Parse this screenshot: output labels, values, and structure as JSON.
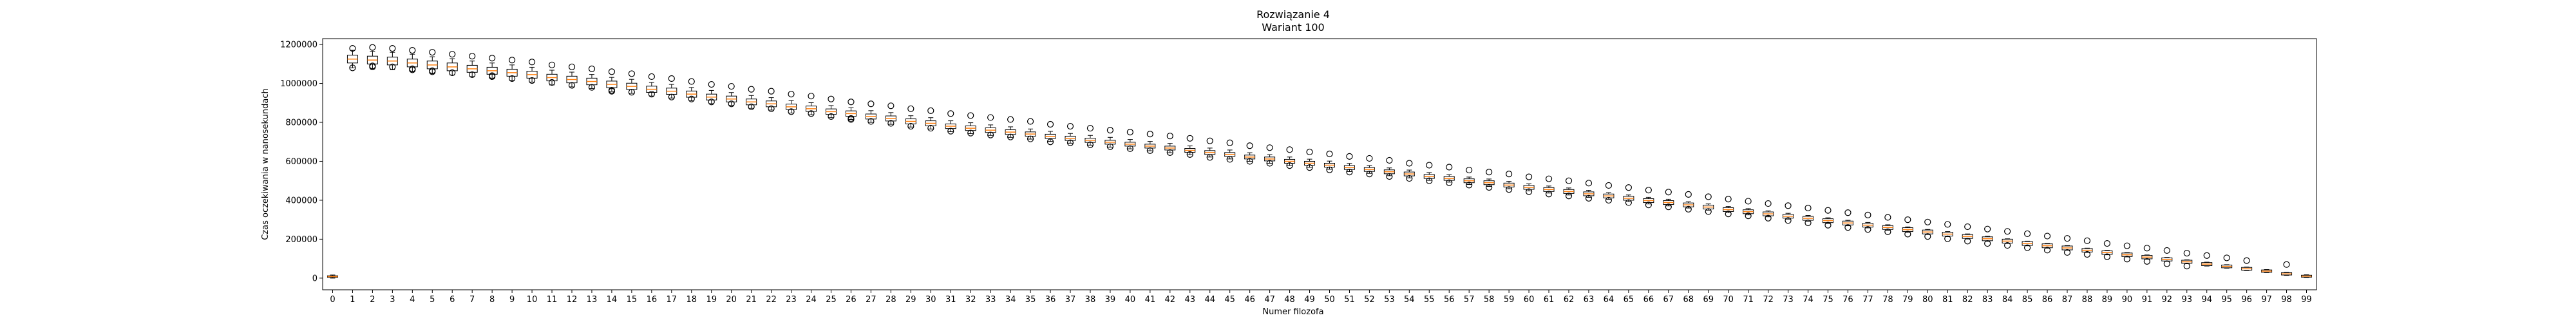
{
  "chart_data": {
    "type": "boxplot",
    "title": "Rozwiązanie 4",
    "subtitle": "Wariant 100",
    "xlabel": "Numer filozofa",
    "ylabel": "Czas oczekiwania w nanosekundach",
    "ylim": [
      -60000,
      1230000
    ],
    "y_ticks": [
      0,
      200000,
      400000,
      600000,
      800000,
      1000000,
      1200000
    ],
    "grid": false,
    "legend": "none",
    "colors": {
      "box": "#000000",
      "median": "#ff7f0e",
      "flier": "#000000",
      "axes": "#000000"
    },
    "categories": [
      "0",
      "1",
      "2",
      "3",
      "4",
      "5",
      "6",
      "7",
      "8",
      "9",
      "10",
      "11",
      "12",
      "13",
      "14",
      "15",
      "16",
      "17",
      "18",
      "19",
      "20",
      "21",
      "22",
      "23",
      "24",
      "25",
      "26",
      "27",
      "28",
      "29",
      "30",
      "31",
      "32",
      "33",
      "34",
      "35",
      "36",
      "37",
      "38",
      "39",
      "40",
      "41",
      "42",
      "43",
      "44",
      "45",
      "46",
      "47",
      "48",
      "49",
      "50",
      "51",
      "52",
      "53",
      "54",
      "55",
      "56",
      "57",
      "58",
      "59",
      "60",
      "61",
      "62",
      "63",
      "64",
      "65",
      "66",
      "67",
      "68",
      "69",
      "70",
      "71",
      "72",
      "73",
      "74",
      "75",
      "76",
      "77",
      "78",
      "79",
      "80",
      "81",
      "82",
      "83",
      "84",
      "85",
      "86",
      "87",
      "88",
      "89",
      "90",
      "91",
      "92",
      "93",
      "94",
      "95",
      "96",
      "97",
      "98",
      "99"
    ],
    "medians": [
      8000,
      1125000,
      1120000,
      1115000,
      1105000,
      1095000,
      1085000,
      1075000,
      1065000,
      1055000,
      1045000,
      1030000,
      1020000,
      1010000,
      995000,
      985000,
      970000,
      960000,
      945000,
      930000,
      920000,
      905000,
      895000,
      880000,
      870000,
      855000,
      845000,
      830000,
      820000,
      805000,
      795000,
      780000,
      770000,
      760000,
      750000,
      740000,
      728000,
      718000,
      708000,
      698000,
      688000,
      678000,
      668000,
      656000,
      645000,
      635000,
      622000,
      612000,
      600000,
      590000,
      580000,
      568000,
      558000,
      546000,
      535000,
      522000,
      512000,
      500000,
      490000,
      478000,
      466000,
      455000,
      445000,
      433000,
      422000,
      410000,
      398000,
      388000,
      376000,
      365000,
      352000,
      341000,
      330000,
      318000,
      307000,
      295000,
      283000,
      272000,
      260000,
      249000,
      237000,
      226000,
      214000,
      202000,
      190000,
      178000,
      166000,
      155000,
      143000,
      131000,
      120000,
      108000,
      96000,
      84000,
      72000,
      60000,
      48000,
      36000,
      22000,
      10000
    ],
    "box_half_range": [
      4000,
      20000,
      20000,
      20000,
      20000,
      20000,
      20000,
      18000,
      18000,
      18000,
      18000,
      17000,
      17000,
      17000,
      17000,
      16000,
      16000,
      16000,
      16000,
      15000,
      15000,
      15000,
      15000,
      14000,
      14000,
      14000,
      14000,
      13000,
      13000,
      13000,
      13000,
      12000,
      12000,
      12000,
      12000,
      11000,
      11000,
      11000,
      11000,
      10000,
      10000,
      10000,
      10000,
      10000,
      10000,
      10000,
      10000,
      10000,
      10000,
      10000,
      10000,
      10000,
      10000,
      10000,
      10000,
      10000,
      10000,
      10000,
      10000,
      10000,
      10000,
      10000,
      10000,
      10000,
      10000,
      10000,
      10000,
      10000,
      10000,
      10000,
      10000,
      10000,
      10000,
      10000,
      10000,
      10000,
      10000,
      10000,
      10000,
      10000,
      10000,
      10000,
      10000,
      10000,
      10000,
      10000,
      10000,
      10000,
      9000,
      9000,
      9000,
      9000,
      8000,
      8000,
      8000,
      7000,
      7000,
      6000,
      6000,
      5000
    ],
    "whisker_half_range": [
      8000,
      45000,
      45000,
      45000,
      45000,
      42000,
      42000,
      40000,
      40000,
      40000,
      38000,
      38000,
      38000,
      36000,
      36000,
      36000,
      35000,
      35000,
      34000,
      34000,
      33000,
      33000,
      32000,
      32000,
      31000,
      31000,
      30000,
      30000,
      30000,
      29000,
      29000,
      28000,
      28000,
      27000,
      27000,
      26000,
      26000,
      25000,
      25000,
      25000,
      24000,
      24000,
      24000,
      23000,
      23000,
      23000,
      22000,
      22000,
      22000,
      21000,
      21000,
      21000,
      20000,
      20000,
      20000,
      20000,
      19000,
      19000,
      19000,
      19000,
      18000,
      18000,
      18000,
      18000,
      17000,
      17000,
      17000,
      17000,
      16000,
      16000,
      16000,
      16000,
      15000,
      15000,
      15000,
      15000,
      14000,
      14000,
      14000,
      14000,
      13000,
      13000,
      13000,
      13000,
      12000,
      12000,
      12000,
      12000,
      11000,
      11000,
      11000,
      11000,
      10000,
      10000,
      10000,
      9000,
      9000,
      8000,
      8000,
      7000
    ],
    "fliers": [
      [],
      [
        1180000,
        1080000
      ],
      [
        1185000,
        1090000,
        1085000
      ],
      [
        1180000,
        1085000
      ],
      [
        1170000,
        1075000,
        1070000
      ],
      [
        1160000,
        1065000,
        1060000
      ],
      [
        1150000,
        1055000
      ],
      [
        1140000,
        1045000
      ],
      [
        1130000,
        1040000,
        1035000
      ],
      [
        1120000,
        1025000
      ],
      [
        1110000,
        1015000
      ],
      [
        1095000,
        1005000
      ],
      [
        1085000,
        990000
      ],
      [
        1075000,
        980000
      ],
      [
        1060000,
        965000,
        960000
      ],
      [
        1050000,
        955000
      ],
      [
        1035000,
        945000
      ],
      [
        1025000,
        930000
      ],
      [
        1010000,
        920000
      ],
      [
        995000,
        905000
      ],
      [
        985000,
        895000
      ],
      [
        970000,
        880000
      ],
      [
        960000,
        870000
      ],
      [
        945000,
        855000
      ],
      [
        935000,
        845000
      ],
      [
        920000,
        830000
      ],
      [
        905000,
        820000,
        815000
      ],
      [
        895000,
        805000
      ],
      [
        885000,
        795000
      ],
      [
        870000,
        780000
      ],
      [
        860000,
        770000
      ],
      [
        845000,
        755000
      ],
      [
        835000,
        745000
      ],
      [
        825000,
        735000
      ],
      [
        815000,
        725000
      ],
      [
        805000,
        715000
      ],
      [
        790000,
        700000
      ],
      [
        780000,
        695000
      ],
      [
        770000,
        685000
      ],
      [
        760000,
        675000
      ],
      [
        750000,
        665000
      ],
      [
        740000,
        655000
      ],
      [
        730000,
        645000
      ],
      [
        718000,
        635000
      ],
      [
        705000,
        620000
      ],
      [
        695000,
        610000
      ],
      [
        680000,
        600000
      ],
      [
        670000,
        590000
      ],
      [
        660000,
        578000
      ],
      [
        648000,
        568000
      ],
      [
        638000,
        556000
      ],
      [
        625000,
        545000
      ],
      [
        615000,
        535000
      ],
      [
        605000,
        522000
      ],
      [
        590000,
        512000
      ],
      [
        580000,
        500000
      ],
      [
        570000,
        490000
      ],
      [
        555000,
        478000
      ],
      [
        545000,
        466000
      ],
      [
        535000,
        455000
      ],
      [
        520000,
        444000
      ],
      [
        510000,
        432000
      ],
      [
        500000,
        422000
      ],
      [
        488000,
        410000
      ],
      [
        476000,
        400000
      ],
      [
        465000,
        388000
      ],
      [
        452000,
        376000
      ],
      [
        442000,
        366000
      ],
      [
        430000,
        354000
      ],
      [
        418000,
        342000
      ],
      [
        406000,
        330000
      ],
      [
        395000,
        320000
      ],
      [
        383000,
        308000
      ],
      [
        372000,
        296000
      ],
      [
        360000,
        284000
      ],
      [
        348000,
        272000
      ],
      [
        336000,
        260000
      ],
      [
        324000,
        250000
      ],
      [
        312000,
        238000
      ],
      [
        300000,
        226000
      ],
      [
        288000,
        214000
      ],
      [
        276000,
        202000
      ],
      [
        264000,
        190000
      ],
      [
        252000,
        178000
      ],
      [
        240000,
        168000
      ],
      [
        228000,
        156000
      ],
      [
        216000,
        144000
      ],
      [
        204000,
        132000
      ],
      [
        192000,
        122000
      ],
      [
        178000,
        110000
      ],
      [
        166000,
        98000
      ],
      [
        154000,
        86000
      ],
      [
        142000,
        74000
      ],
      [
        128000,
        62000
      ],
      [
        116000
      ],
      [
        104000
      ],
      [
        90000
      ],
      [],
      [
        70000
      ],
      []
    ]
  }
}
